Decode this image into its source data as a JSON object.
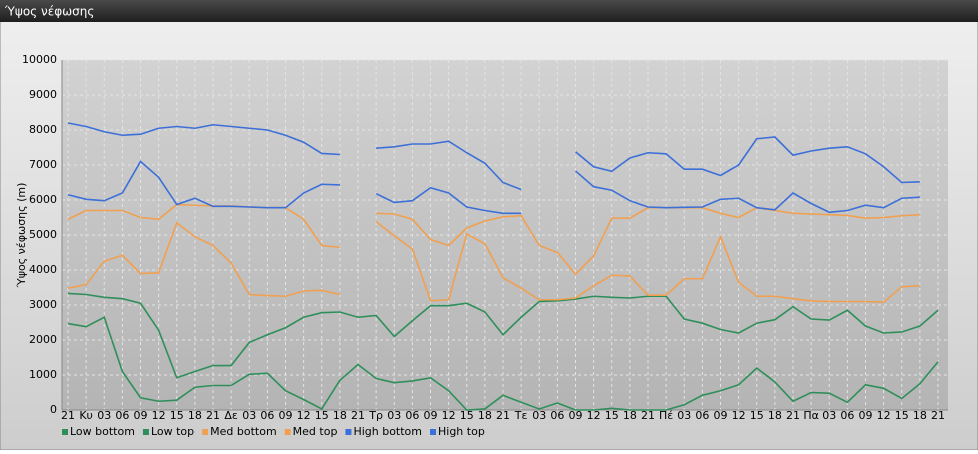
{
  "chart_data": {
    "type": "line",
    "title": "Ύψος νέφωσης",
    "ylabel": "Ύψος νέφωσης (m)",
    "categories": [
      "21",
      "Κυ",
      "03",
      "06",
      "09",
      "12",
      "15",
      "18",
      "21",
      "Δε",
      "03",
      "06",
      "09",
      "12",
      "15",
      "18",
      "21",
      "Τρ",
      "03",
      "06",
      "09",
      "12",
      "15",
      "18",
      "21",
      "Τε",
      "03",
      "06",
      "09",
      "12",
      "15",
      "18",
      "21",
      "Πέ",
      "03",
      "06",
      "09",
      "12",
      "15",
      "18",
      "21",
      "Πα",
      "03",
      "06",
      "09",
      "12",
      "15",
      "18",
      "21"
    ],
    "ylim": [
      0,
      10000
    ],
    "yticks": [
      0,
      1000,
      2000,
      3000,
      4000,
      5000,
      6000,
      7000,
      8000,
      9000,
      10000
    ],
    "grid": true,
    "series": [
      {
        "name": "Low bottom",
        "color": "#2f8f5a",
        "values": [
          2470,
          2380,
          2650,
          1100,
          350,
          250,
          280,
          650,
          700,
          700,
          1020,
          1050,
          550,
          300,
          30,
          850,
          1300,
          900,
          780,
          830,
          920,
          550,
          0,
          30,
          420,
          220,
          30,
          200,
          0,
          0,
          50,
          0,
          0,
          0,
          150,
          420,
          550,
          720,
          1200,
          800,
          250,
          500,
          480,
          220,
          720,
          620,
          330,
          750,
          1380
        ]
      },
      {
        "name": "Low top",
        "color": "#2f8f5a",
        "values": [
          3330,
          3300,
          3220,
          3180,
          3050,
          2280,
          920,
          1100,
          1270,
          1270,
          1930,
          2150,
          2350,
          2650,
          2780,
          2800,
          2650,
          2700,
          2100,
          2550,
          2980,
          2980,
          3050,
          2800,
          2150,
          2650,
          3100,
          3120,
          3170,
          3250,
          3220,
          3200,
          3250,
          3250,
          2600,
          2480,
          2300,
          2200,
          2480,
          2580,
          2950,
          2600,
          2570,
          2850,
          2400,
          2200,
          2230,
          2400,
          2850
        ]
      },
      {
        "name": "Med bottom",
        "color": "#f0a050",
        "values": [
          3480,
          3580,
          4250,
          4420,
          3900,
          3920,
          5350,
          4950,
          4700,
          4200,
          3300,
          3270,
          3250,
          3400,
          3420,
          3300,
          null,
          5380,
          4980,
          4600,
          3120,
          3150,
          5030,
          4750,
          3780,
          3480,
          3150,
          3150,
          3200,
          3550,
          3850,
          3830,
          3280,
          3280,
          3750,
          3750,
          4950,
          3650,
          3250,
          3250,
          3180,
          3120,
          3100,
          3100,
          3100,
          3080,
          3520,
          3550,
          null
        ]
      },
      {
        "name": "Med top",
        "color": "#f0a050",
        "values": [
          5450,
          5700,
          5700,
          5700,
          5500,
          5450,
          5870,
          5850,
          5830,
          5830,
          5800,
          5780,
          5780,
          5450,
          4700,
          4650,
          null,
          5620,
          5600,
          5450,
          4870,
          4700,
          5200,
          5400,
          5520,
          5550,
          4700,
          4500,
          3880,
          4400,
          5480,
          5480,
          5780,
          5780,
          5780,
          5780,
          5620,
          5500,
          5780,
          5700,
          5620,
          5600,
          5580,
          5560,
          5480,
          5500,
          5550,
          5580,
          null
        ]
      },
      {
        "name": "High bottom",
        "color": "#3c6fd8",
        "values": [
          6150,
          6020,
          5980,
          6200,
          7100,
          6650,
          5870,
          6050,
          5820,
          5820,
          5800,
          5780,
          5780,
          6200,
          6450,
          6430,
          null,
          6180,
          5930,
          5980,
          6350,
          6200,
          5800,
          5700,
          5620,
          5620,
          null,
          null,
          6830,
          6380,
          6280,
          5980,
          5800,
          5780,
          5790,
          5800,
          6020,
          6050,
          5780,
          5720,
          6200,
          5900,
          5650,
          5700,
          5850,
          5780,
          6050,
          6080,
          null
        ]
      },
      {
        "name": "High top",
        "color": "#3c6fd8",
        "values": [
          8200,
          8100,
          7950,
          7850,
          7880,
          8050,
          8100,
          8050,
          8150,
          8100,
          8050,
          8000,
          7850,
          7650,
          7330,
          7300,
          null,
          7480,
          7520,
          7600,
          7600,
          7680,
          7350,
          7050,
          6500,
          6300,
          null,
          null,
          7380,
          6950,
          6820,
          7200,
          7350,
          7320,
          6880,
          6880,
          6700,
          7000,
          7750,
          7800,
          7280,
          7400,
          7480,
          7520,
          7320,
          6950,
          6500,
          6520,
          null
        ]
      }
    ]
  }
}
